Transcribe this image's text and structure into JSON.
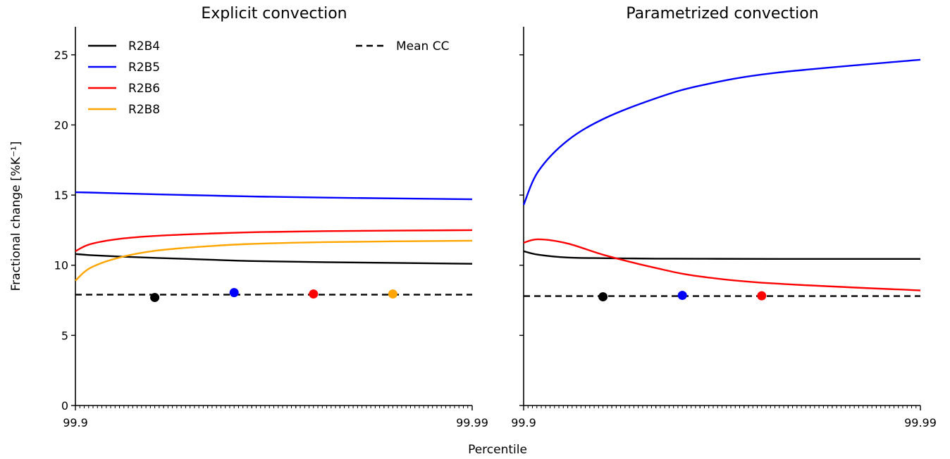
{
  "chart_data": [
    {
      "type": "line",
      "title": "Explicit convection",
      "xlabel": "",
      "ylabel": "Fractional change [%K⁻¹]",
      "ylim": [
        0,
        27
      ],
      "x_scale": "reciprocal-percentile",
      "x_tick_labels": [
        "99.9",
        "99.99"
      ],
      "y_ticks": [
        0,
        5,
        10,
        15,
        20,
        25
      ],
      "grid": false,
      "legend": [
        {
          "label": "R2B4",
          "color": "#000000",
          "style": "solid",
          "position": "top-left"
        },
        {
          "label": "R2B5",
          "color": "#0000ff",
          "style": "solid",
          "position": "top-left"
        },
        {
          "label": "R2B6",
          "color": "#ff0000",
          "style": "solid",
          "position": "top-left"
        },
        {
          "label": "R2B8",
          "color": "#ffa500",
          "style": "solid",
          "position": "top-left"
        },
        {
          "label": "Mean CC",
          "color": "#000000",
          "style": "dashed",
          "position": "top-right"
        }
      ],
      "series": [
        {
          "name": "R2B4",
          "color": "#000000",
          "x": [
            99.9,
            99.925,
            99.95,
            99.965,
            99.975,
            99.98,
            99.985,
            99.99
          ],
          "y": [
            10.8,
            10.72,
            10.62,
            10.52,
            10.4,
            10.3,
            10.22,
            10.1
          ]
        },
        {
          "name": "R2B5",
          "color": "#0000ff",
          "x": [
            99.9,
            99.925,
            99.95,
            99.965,
            99.975,
            99.98,
            99.985,
            99.99
          ],
          "y": [
            15.2,
            15.18,
            15.12,
            15.05,
            14.97,
            14.9,
            14.82,
            14.7
          ]
        },
        {
          "name": "R2B6",
          "color": "#ff0000",
          "x": [
            99.9,
            99.925,
            99.95,
            99.965,
            99.975,
            99.98,
            99.985,
            99.99
          ],
          "y": [
            11.0,
            11.5,
            11.88,
            12.1,
            12.25,
            12.35,
            12.43,
            12.5
          ]
        },
        {
          "name": "R2B8",
          "color": "#ffa500",
          "x": [
            99.9,
            99.925,
            99.95,
            99.965,
            99.975,
            99.98,
            99.985,
            99.99
          ],
          "y": [
            8.9,
            9.8,
            10.55,
            11.05,
            11.35,
            11.52,
            11.65,
            11.75
          ]
        }
      ],
      "mean_cc": 7.9,
      "mean_cc_points": [
        {
          "name": "R2B4",
          "color": "#000000",
          "y": 7.7
        },
        {
          "name": "R2B5",
          "color": "#0000ff",
          "y": 8.05
        },
        {
          "name": "R2B6",
          "color": "#ff0000",
          "y": 7.95
        },
        {
          "name": "R2B8",
          "color": "#ffa500",
          "y": 7.95
        }
      ]
    },
    {
      "type": "line",
      "title": "Parametrized convection",
      "xlabel": "",
      "ylabel": "",
      "ylim": [
        0,
        27
      ],
      "x_scale": "reciprocal-percentile",
      "x_tick_labels": [
        "99.9",
        "99.99"
      ],
      "y_ticks": [
        0,
        5,
        10,
        15,
        20,
        25
      ],
      "y_tick_labels_shown": false,
      "grid": false,
      "series": [
        {
          "name": "R2B4",
          "color": "#000000",
          "x": [
            99.9,
            99.925,
            99.95,
            99.965,
            99.975,
            99.98,
            99.985,
            99.99
          ],
          "y": [
            11.0,
            10.75,
            10.55,
            10.5,
            10.47,
            10.46,
            10.45,
            10.45
          ]
        },
        {
          "name": "R2B5",
          "color": "#0000ff",
          "x": [
            99.9,
            99.925,
            99.95,
            99.965,
            99.975,
            99.98,
            99.985,
            99.99
          ],
          "y": [
            14.3,
            16.7,
            18.9,
            20.5,
            21.9,
            22.8,
            23.7,
            24.65
          ]
        },
        {
          "name": "R2B6",
          "color": "#ff0000",
          "x": [
            99.9,
            99.925,
            99.95,
            99.965,
            99.975,
            99.98,
            99.985,
            99.99
          ],
          "y": [
            11.6,
            11.85,
            11.55,
            10.7,
            9.8,
            9.2,
            8.7,
            8.2
          ]
        }
      ],
      "mean_cc": 7.8,
      "mean_cc_points": [
        {
          "name": "R2B4",
          "color": "#000000",
          "y": 7.75
        },
        {
          "name": "R2B5",
          "color": "#0000ff",
          "y": 7.85
        },
        {
          "name": "R2B6",
          "color": "#ff0000",
          "y": 7.82
        }
      ]
    }
  ],
  "shared_xlabel": "Percentile"
}
